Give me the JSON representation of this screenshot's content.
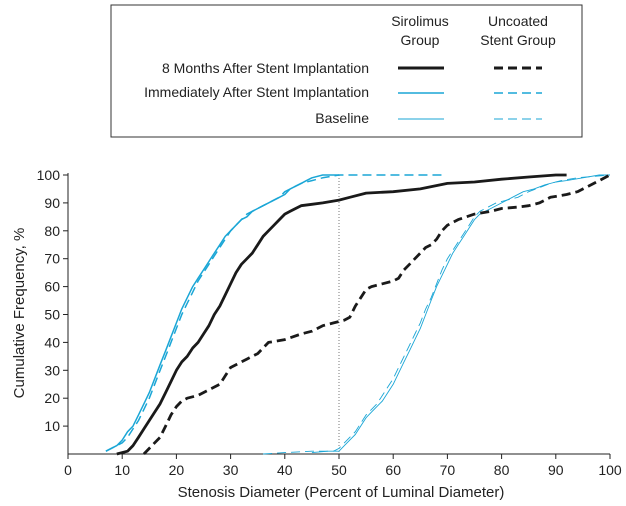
{
  "colors": {
    "black": "#1a1a1a",
    "blue": "#1aa6d6",
    "ref_line": "#777777"
  },
  "legend": {
    "col_headers": [
      {
        "line1": "Sirolimus",
        "line2": "Group"
      },
      {
        "line1": "Uncoated",
        "line2": "Stent Group"
      }
    ],
    "rows": [
      {
        "label": "8 Months After Stent Implantation",
        "color": "black",
        "width": "thick",
        "styles": [
          "solid",
          "dashed"
        ]
      },
      {
        "label": "Immediately After Stent Implantation",
        "color": "blue",
        "width": "medium",
        "styles": [
          "solid",
          "dashed"
        ]
      },
      {
        "label": "Baseline",
        "color": "blue",
        "width": "thin",
        "styles": [
          "solid",
          "dashed"
        ]
      }
    ]
  },
  "chart_data": {
    "type": "line",
    "title": "",
    "xlabel": "Stenosis Diameter (Percent of Luminal Diameter)",
    "ylabel": "Cumulative Frequency, %",
    "xlim": [
      0,
      100
    ],
    "ylim": [
      0,
      100
    ],
    "x_ticks": [
      "0",
      "10",
      "20",
      "30",
      "40",
      "50",
      "60",
      "70",
      "80",
      "90",
      "100"
    ],
    "y_ticks": [
      "10",
      "20",
      "30",
      "40",
      "50",
      "60",
      "70",
      "80",
      "90",
      "100"
    ],
    "reference_line_x": 50,
    "grid": false,
    "series": [
      {
        "name": "Sirolimus Group, 8 Months After Stent Implantation",
        "color": "black",
        "style": "solid",
        "width": "thick",
        "points": [
          [
            9,
            0
          ],
          [
            11,
            1
          ],
          [
            12,
            3
          ],
          [
            13,
            6
          ],
          [
            14,
            9
          ],
          [
            15,
            12
          ],
          [
            16,
            15
          ],
          [
            17,
            18
          ],
          [
            18,
            22
          ],
          [
            19,
            26
          ],
          [
            20,
            30
          ],
          [
            21,
            33
          ],
          [
            22,
            35
          ],
          [
            23,
            38
          ],
          [
            24,
            40
          ],
          [
            25,
            43
          ],
          [
            26,
            46
          ],
          [
            27,
            50
          ],
          [
            28,
            53
          ],
          [
            29,
            57
          ],
          [
            30,
            61
          ],
          [
            31,
            65
          ],
          [
            32,
            68
          ],
          [
            33,
            70
          ],
          [
            34,
            72
          ],
          [
            35,
            75
          ],
          [
            36,
            78
          ],
          [
            37,
            80
          ],
          [
            38,
            82
          ],
          [
            39,
            84
          ],
          [
            40,
            86
          ],
          [
            41,
            87
          ],
          [
            42,
            88
          ],
          [
            43,
            89
          ],
          [
            45,
            89.5
          ],
          [
            47,
            90
          ],
          [
            50,
            91
          ],
          [
            52,
            92
          ],
          [
            55,
            93.5
          ],
          [
            60,
            94
          ],
          [
            65,
            95
          ],
          [
            70,
            97
          ],
          [
            75,
            97.5
          ],
          [
            80,
            98.5
          ],
          [
            85,
            99.3
          ],
          [
            90,
            100
          ],
          [
            92,
            100
          ]
        ]
      },
      {
        "name": "Uncoated Stent Group, 8 Months After Stent Implantation",
        "color": "black",
        "style": "dashed",
        "width": "thick",
        "points": [
          [
            14,
            0
          ],
          [
            15,
            2
          ],
          [
            16,
            4
          ],
          [
            17,
            6
          ],
          [
            18,
            10
          ],
          [
            19,
            14
          ],
          [
            20,
            17
          ],
          [
            21,
            19
          ],
          [
            22,
            20
          ],
          [
            24,
            21
          ],
          [
            26,
            23
          ],
          [
            28,
            25
          ],
          [
            29,
            28
          ],
          [
            30,
            31
          ],
          [
            31,
            32
          ],
          [
            33,
            34
          ],
          [
            35,
            36
          ],
          [
            36,
            38
          ],
          [
            37,
            40
          ],
          [
            40,
            41
          ],
          [
            43,
            43
          ],
          [
            45,
            44
          ],
          [
            47,
            46
          ],
          [
            49,
            47
          ],
          [
            51,
            48
          ],
          [
            52,
            49
          ],
          [
            53,
            53
          ],
          [
            54,
            56
          ],
          [
            55,
            59
          ],
          [
            56,
            60
          ],
          [
            58,
            61
          ],
          [
            60,
            62
          ],
          [
            61,
            63
          ],
          [
            62,
            66
          ],
          [
            63,
            68
          ],
          [
            64,
            70
          ],
          [
            65,
            72
          ],
          [
            66,
            74
          ],
          [
            67,
            75
          ],
          [
            68,
            77
          ],
          [
            69,
            80
          ],
          [
            70,
            82
          ],
          [
            72,
            84
          ],
          [
            75,
            86
          ],
          [
            78,
            87
          ],
          [
            80,
            88
          ],
          [
            83,
            88.5
          ],
          [
            85,
            89
          ],
          [
            87,
            90
          ],
          [
            89,
            92
          ],
          [
            92,
            93
          ],
          [
            94,
            94
          ],
          [
            96,
            96
          ],
          [
            98,
            98
          ],
          [
            100,
            100
          ]
        ]
      },
      {
        "name": "Sirolimus Group, Immediately After Stent Implantation",
        "color": "blue",
        "style": "solid",
        "width": "medium",
        "points": [
          [
            7,
            1
          ],
          [
            9,
            3
          ],
          [
            10,
            5
          ],
          [
            11,
            8
          ],
          [
            12,
            10
          ],
          [
            13,
            14
          ],
          [
            14,
            18
          ],
          [
            15,
            22
          ],
          [
            16,
            27
          ],
          [
            17,
            32
          ],
          [
            18,
            37
          ],
          [
            19,
            42
          ],
          [
            20,
            47
          ],
          [
            21,
            52
          ],
          [
            22,
            56
          ],
          [
            23,
            60
          ],
          [
            24,
            63
          ],
          [
            25,
            66
          ],
          [
            26,
            69
          ],
          [
            27,
            72
          ],
          [
            28,
            75
          ],
          [
            29,
            78
          ],
          [
            30,
            80
          ],
          [
            31,
            82
          ],
          [
            32,
            84
          ],
          [
            33,
            85
          ],
          [
            34,
            87
          ],
          [
            35,
            88
          ],
          [
            36,
            89
          ],
          [
            37,
            90
          ],
          [
            38,
            91
          ],
          [
            39,
            92
          ],
          [
            40,
            93
          ],
          [
            41,
            95
          ],
          [
            42,
            96
          ],
          [
            43,
            97
          ],
          [
            44,
            98
          ],
          [
            45,
            99
          ],
          [
            47,
            100
          ],
          [
            50,
            100
          ]
        ]
      },
      {
        "name": "Uncoated Stent Group, Immediately After Stent Implantation",
        "color": "blue",
        "style": "dashed",
        "width": "medium",
        "points": [
          [
            7,
            1
          ],
          [
            9,
            3
          ],
          [
            10,
            4
          ],
          [
            11,
            6
          ],
          [
            12,
            9
          ],
          [
            13,
            12
          ],
          [
            14,
            16
          ],
          [
            15,
            20
          ],
          [
            16,
            25
          ],
          [
            17,
            30
          ],
          [
            18,
            35
          ],
          [
            19,
            40
          ],
          [
            20,
            45
          ],
          [
            21,
            50
          ],
          [
            22,
            54
          ],
          [
            23,
            58
          ],
          [
            24,
            62
          ],
          [
            25,
            65
          ],
          [
            26,
            68
          ],
          [
            27,
            71
          ],
          [
            28,
            74
          ],
          [
            29,
            77
          ],
          [
            30,
            80
          ],
          [
            31,
            82
          ],
          [
            32,
            84
          ],
          [
            33,
            86
          ],
          [
            34,
            87
          ],
          [
            35,
            88
          ],
          [
            36,
            89
          ],
          [
            37,
            90
          ],
          [
            38,
            91
          ],
          [
            39,
            92
          ],
          [
            40,
            94
          ],
          [
            41,
            95
          ],
          [
            42,
            96
          ],
          [
            43,
            97
          ],
          [
            45,
            98
          ],
          [
            47,
            99
          ],
          [
            50,
            100
          ],
          [
            55,
            100
          ],
          [
            60,
            100
          ],
          [
            65,
            100
          ],
          [
            69,
            100
          ]
        ]
      },
      {
        "name": "Sirolimus Group, Baseline",
        "color": "blue",
        "style": "solid",
        "width": "thin",
        "points": [
          [
            45,
            0.5
          ],
          [
            48,
            1
          ],
          [
            50,
            1
          ],
          [
            51,
            3
          ],
          [
            52,
            5
          ],
          [
            53,
            7
          ],
          [
            54,
            10
          ],
          [
            55,
            13
          ],
          [
            56,
            15
          ],
          [
            57,
            17
          ],
          [
            58,
            19
          ],
          [
            59,
            22
          ],
          [
            60,
            25
          ],
          [
            61,
            29
          ],
          [
            62,
            33
          ],
          [
            63,
            37
          ],
          [
            64,
            41
          ],
          [
            65,
            45
          ],
          [
            66,
            50
          ],
          [
            67,
            55
          ],
          [
            68,
            60
          ],
          [
            69,
            64
          ],
          [
            70,
            68
          ],
          [
            71,
            72
          ],
          [
            72,
            75
          ],
          [
            73,
            78
          ],
          [
            74,
            81
          ],
          [
            75,
            84
          ],
          [
            76,
            86
          ],
          [
            77,
            87
          ],
          [
            78,
            88
          ],
          [
            80,
            90
          ],
          [
            82,
            92
          ],
          [
            84,
            94
          ],
          [
            86,
            95
          ],
          [
            88,
            96.5
          ],
          [
            90,
            97.5
          ],
          [
            92,
            98
          ],
          [
            95,
            99
          ],
          [
            98,
            100
          ],
          [
            100,
            100
          ]
        ]
      },
      {
        "name": "Uncoated Stent Group, Baseline",
        "color": "blue",
        "style": "dashed",
        "width": "thin",
        "points": [
          [
            36,
            0
          ],
          [
            40,
            0.5
          ],
          [
            45,
            1
          ],
          [
            49,
            1
          ],
          [
            50,
            2
          ],
          [
            51,
            4
          ],
          [
            52,
            6
          ],
          [
            53,
            8
          ],
          [
            54,
            11
          ],
          [
            55,
            14
          ],
          [
            56,
            16
          ],
          [
            57,
            18
          ],
          [
            58,
            21
          ],
          [
            59,
            24
          ],
          [
            60,
            27
          ],
          [
            61,
            31
          ],
          [
            62,
            35
          ],
          [
            63,
            39
          ],
          [
            64,
            43
          ],
          [
            65,
            47
          ],
          [
            66,
            52
          ],
          [
            67,
            56
          ],
          [
            68,
            61
          ],
          [
            69,
            66
          ],
          [
            70,
            70
          ],
          [
            71,
            73
          ],
          [
            72,
            76
          ],
          [
            73,
            79
          ],
          [
            74,
            82
          ],
          [
            75,
            85
          ],
          [
            76,
            87
          ],
          [
            77,
            88
          ],
          [
            79,
            90
          ],
          [
            81,
            91
          ],
          [
            83,
            92
          ],
          [
            85,
            94
          ],
          [
            87,
            95.5
          ],
          [
            89,
            97
          ],
          [
            91,
            98
          ],
          [
            94,
            99
          ],
          [
            97,
            99.5
          ],
          [
            100,
            100
          ]
        ]
      }
    ]
  }
}
